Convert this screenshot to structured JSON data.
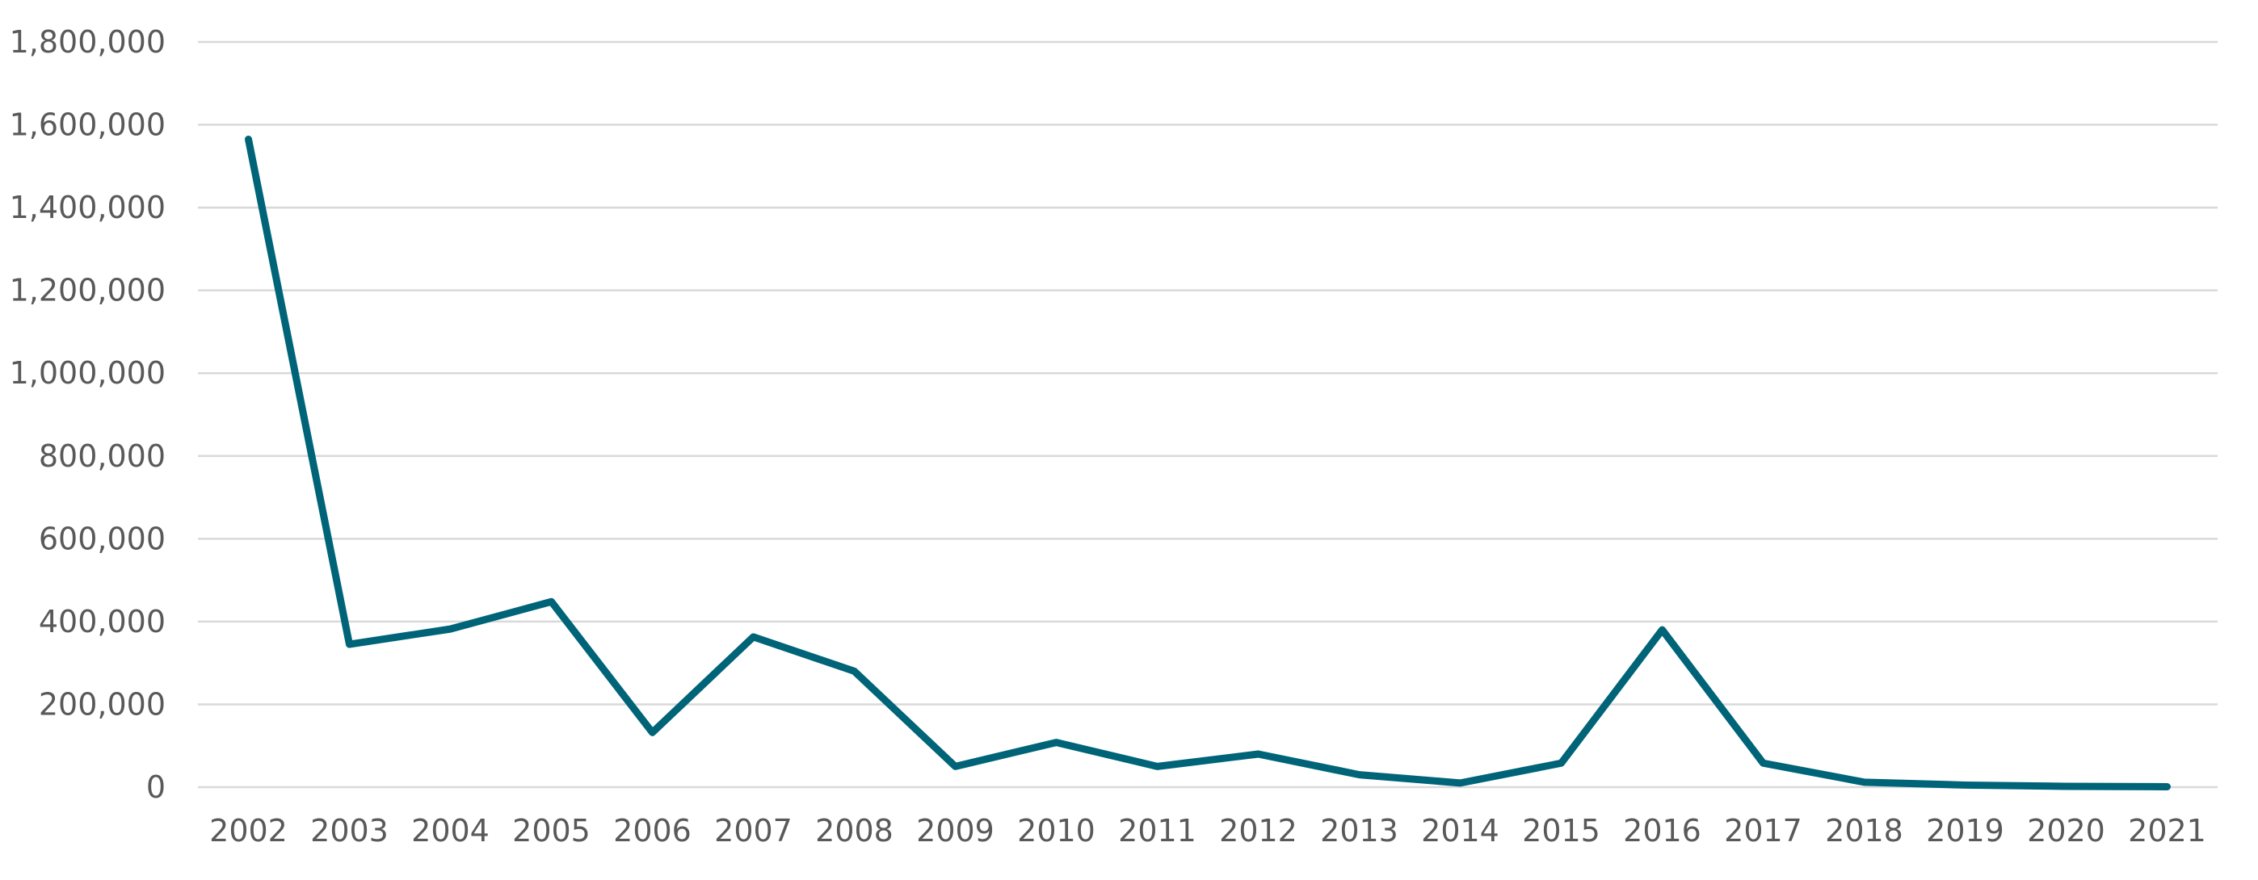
{
  "chart_data": {
    "type": "line",
    "title": "",
    "xlabel": "",
    "ylabel": "",
    "x": [
      "2002",
      "2003",
      "2004",
      "2005",
      "2006",
      "2007",
      "2008",
      "2009",
      "2010",
      "2011",
      "2012",
      "2013",
      "2014",
      "2015",
      "2016",
      "2017",
      "2018",
      "2019",
      "2020",
      "2021"
    ],
    "series": [
      {
        "values": [
          1565000,
          345000,
          382000,
          448000,
          132000,
          363000,
          280000,
          50000,
          108000,
          50000,
          80000,
          30000,
          10000,
          58000,
          380000,
          58000,
          12000,
          5000,
          2000,
          1000
        ]
      }
    ],
    "ylim": [
      0,
      1800000
    ],
    "y_ticks": [
      "0",
      "200,000",
      "400,000",
      "600,000",
      "800,000",
      "1,000,000",
      "1,200,000",
      "1,400,000",
      "1,600,000",
      "1,800,000"
    ],
    "grid": "horizontal",
    "legend": "none",
    "colors": {
      "line": "#006478",
      "grid": "#d9d9d9",
      "text": "#595959"
    }
  }
}
